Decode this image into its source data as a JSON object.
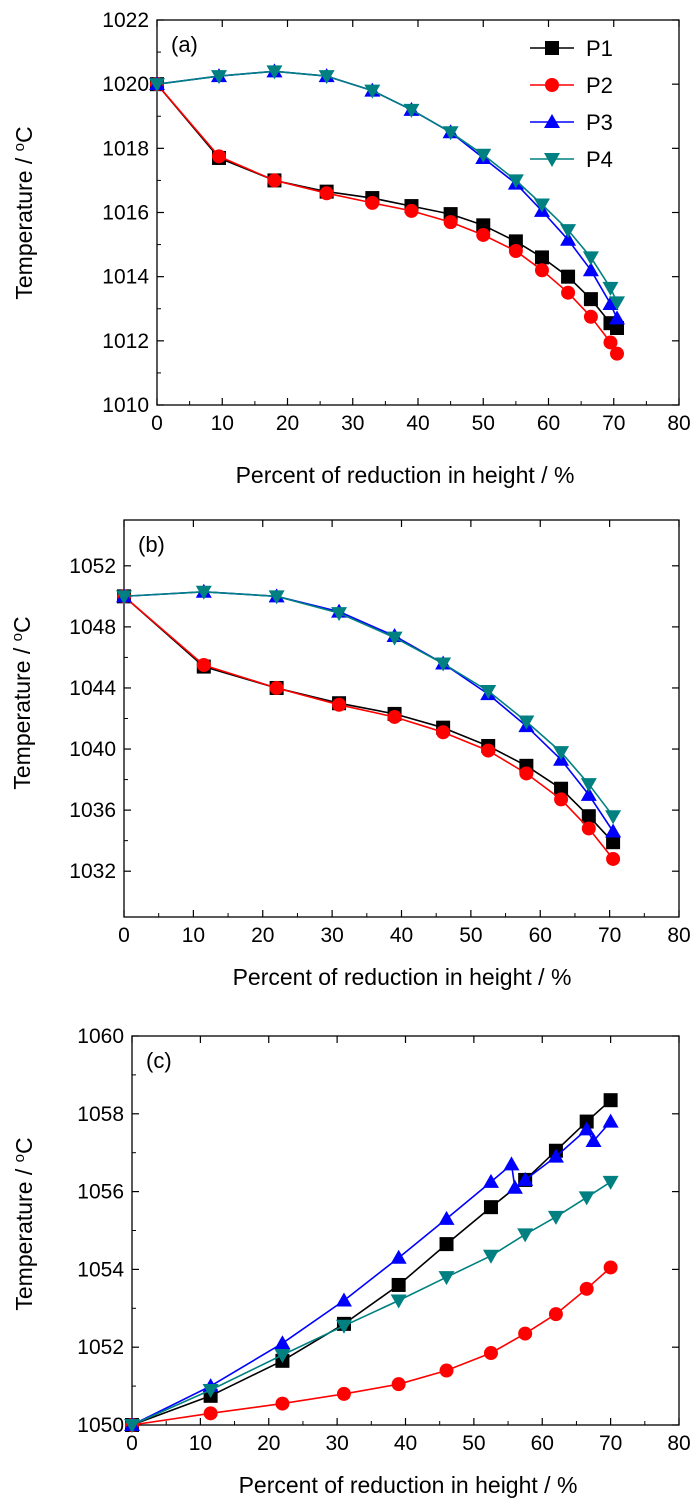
{
  "figure": {
    "xlabel": "Percent of reduction in height / %",
    "ylabel_main": "Temperature / ",
    "ylabel_sup": "o",
    "ylabel_unit": "C"
  },
  "legend": [
    {
      "name": "P1",
      "color": "#000000",
      "marker": "square"
    },
    {
      "name": "P2",
      "color": "#ff0000",
      "marker": "circle"
    },
    {
      "name": "P3",
      "color": "#0000ff",
      "marker": "triangle-up"
    },
    {
      "name": "P4",
      "color": "#008080",
      "marker": "triangle-down"
    }
  ],
  "chart_data": [
    {
      "type": "line",
      "panel_label": "(a)",
      "xlabel": "Percent of reduction in height / %",
      "ylabel": "Temperature / oC",
      "xlim": [
        0,
        80
      ],
      "ylim": [
        1010,
        1022
      ],
      "xticks": [
        0,
        10,
        20,
        30,
        40,
        50,
        60,
        70,
        80
      ],
      "yticks": [
        1010,
        1012,
        1014,
        1016,
        1018,
        1020,
        1022
      ],
      "legend_position": "top-right",
      "grid": false,
      "series": [
        {
          "name": "P1",
          "color": "#000000",
          "marker": "square",
          "x": [
            0,
            9.5,
            18,
            26,
            33,
            39,
            45,
            50,
            55,
            59,
            63,
            66.5,
            69.5,
            70.5
          ],
          "y": [
            1020,
            1017.7,
            1017,
            1016.65,
            1016.45,
            1016.2,
            1015.95,
            1015.6,
            1015.1,
            1014.6,
            1014,
            1013.3,
            1012.55,
            1012.4
          ]
        },
        {
          "name": "P2",
          "color": "#ff0000",
          "marker": "circle",
          "x": [
            0,
            9.5,
            18,
            26,
            33,
            39,
            45,
            50,
            55,
            59,
            63,
            66.5,
            69.5,
            70.5
          ],
          "y": [
            1020,
            1017.75,
            1017,
            1016.6,
            1016.3,
            1016.05,
            1015.7,
            1015.3,
            1014.8,
            1014.2,
            1013.5,
            1012.75,
            1011.95,
            1011.6
          ]
        },
        {
          "name": "P3",
          "color": "#0000ff",
          "marker": "triangle-up",
          "x": [
            0,
            9.5,
            18,
            26,
            33,
            39,
            45,
            50,
            55,
            59,
            63,
            66.5,
            69.5,
            70.5
          ],
          "y": [
            1020,
            1020.25,
            1020.4,
            1020.25,
            1019.8,
            1019.2,
            1018.5,
            1017.7,
            1016.9,
            1016.05,
            1015.15,
            1014.2,
            1013.15,
            1012.7
          ]
        },
        {
          "name": "P4",
          "color": "#008080",
          "marker": "triangle-down",
          "x": [
            0,
            9.5,
            18,
            26,
            33,
            39,
            45,
            50,
            55,
            59,
            63,
            66.5,
            69.5,
            70.5
          ],
          "y": [
            1020,
            1020.25,
            1020.4,
            1020.25,
            1019.8,
            1019.2,
            1018.5,
            1017.8,
            1017,
            1016.25,
            1015.45,
            1014.6,
            1013.65,
            1013.2
          ]
        }
      ]
    },
    {
      "type": "line",
      "panel_label": "(b)",
      "xlabel": "Percent of reduction in height / %",
      "ylabel": "Temperature / oC",
      "xlim": [
        0,
        80
      ],
      "ylim": [
        1029,
        1055
      ],
      "xticks": [
        0,
        10,
        20,
        30,
        40,
        50,
        60,
        70,
        80
      ],
      "yticks": [
        1032,
        1036,
        1040,
        1044,
        1048,
        1052
      ],
      "grid": false,
      "series": [
        {
          "name": "P1",
          "color": "#000000",
          "marker": "square",
          "x": [
            0,
            11.5,
            22,
            31,
            39,
            46,
            52.5,
            58,
            63,
            67,
            70.5
          ],
          "y": [
            1050,
            1045.4,
            1044,
            1043,
            1042.3,
            1041.4,
            1040.2,
            1038.9,
            1037.4,
            1035.6,
            1033.9
          ]
        },
        {
          "name": "P2",
          "color": "#ff0000",
          "marker": "circle",
          "x": [
            0,
            11.5,
            22,
            31,
            39,
            46,
            52.5,
            58,
            63,
            67,
            70.5
          ],
          "y": [
            1050,
            1045.5,
            1044,
            1042.9,
            1042.1,
            1041.1,
            1039.9,
            1038.4,
            1036.7,
            1034.8,
            1032.8
          ]
        },
        {
          "name": "P3",
          "color": "#0000ff",
          "marker": "triangle-up",
          "x": [
            0,
            11.5,
            22,
            31,
            39,
            46,
            52.5,
            58,
            63,
            67,
            70.5
          ],
          "y": [
            1050,
            1050.3,
            1050,
            1049,
            1047.4,
            1045.6,
            1043.6,
            1041.5,
            1039.3,
            1037,
            1034.6
          ]
        },
        {
          "name": "P4",
          "color": "#008080",
          "marker": "triangle-down",
          "x": [
            0,
            11.5,
            22,
            31,
            39,
            46,
            52.5,
            58,
            63,
            67,
            70.5
          ],
          "y": [
            1050,
            1050.3,
            1050,
            1048.9,
            1047.3,
            1045.6,
            1043.8,
            1041.8,
            1039.8,
            1037.7,
            1035.6
          ]
        }
      ]
    },
    {
      "type": "line",
      "panel_label": "(c)",
      "xlabel": "Percent of reduction in height / %",
      "ylabel": "Temperature / oC",
      "xlim": [
        0,
        80
      ],
      "ylim": [
        1050,
        1060
      ],
      "xticks": [
        0,
        10,
        20,
        30,
        40,
        50,
        60,
        70,
        80
      ],
      "yticks": [
        1050,
        1052,
        1054,
        1056,
        1058,
        1060
      ],
      "grid": false,
      "series": [
        {
          "name": "P1",
          "color": "#000000",
          "marker": "square",
          "x": [
            0,
            11.5,
            22,
            31,
            39,
            46,
            52.5,
            57.5,
            62,
            66.5,
            70
          ],
          "y": [
            1050,
            1050.75,
            1051.65,
            1052.6,
            1053.6,
            1054.65,
            1055.6,
            1056.3,
            1057.05,
            1057.8,
            1058.35
          ]
        },
        {
          "name": "P2",
          "color": "#ff0000",
          "marker": "circle",
          "x": [
            0,
            11.5,
            22,
            31,
            39,
            46,
            52.5,
            57.5,
            62,
            66.5,
            70
          ],
          "y": [
            1050,
            1050.3,
            1050.55,
            1050.8,
            1051.05,
            1051.4,
            1051.85,
            1052.35,
            1052.85,
            1053.5,
            1054.05
          ]
        },
        {
          "name": "P3",
          "color": "#0000ff",
          "marker": "triangle-up",
          "x": [
            0,
            11.5,
            22,
            31,
            39,
            46,
            52.5,
            55.5,
            56,
            57.5,
            62,
            66.5,
            67.5,
            70
          ],
          "y": [
            1050,
            1051,
            1052.1,
            1053.2,
            1054.3,
            1055.3,
            1056.25,
            1056.7,
            1056.1,
            1056.3,
            1056.9,
            1057.6,
            1057.3,
            1057.8
          ]
        },
        {
          "name": "P4",
          "color": "#008080",
          "marker": "triangle-down",
          "x": [
            0,
            11.5,
            22,
            31,
            39,
            46,
            52.5,
            57.5,
            62,
            66.5,
            70
          ],
          "y": [
            1050,
            1050.9,
            1051.8,
            1052.55,
            1053.2,
            1053.8,
            1054.35,
            1054.9,
            1055.35,
            1055.85,
            1056.25
          ]
        }
      ]
    }
  ]
}
